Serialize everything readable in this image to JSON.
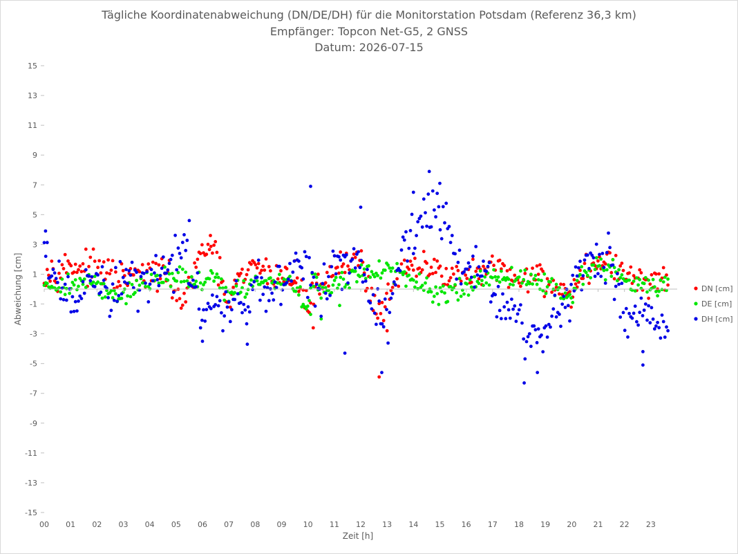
{
  "chart_data": {
    "type": "scatter",
    "title_lines": [
      "Tägliche Koordinatenabweichung (DN/DE/DH) für die Monitorstation Potsdam (Referenz 36,3 km)",
      "Empfänger: Topcon Net-G5, 2 GNSS",
      "Datum: 2026-07-15"
    ],
    "xlabel": "Zeit [h]",
    "ylabel": "Abweichung [cm]",
    "xlim": [
      0,
      24
    ],
    "ylim": [
      -15,
      15
    ],
    "x_tick_labels": [
      "00",
      "01",
      "02",
      "03",
      "04",
      "05",
      "06",
      "07",
      "08",
      "09",
      "10",
      "11",
      "12",
      "13",
      "14",
      "15",
      "16",
      "17",
      "18",
      "19",
      "20",
      "21",
      "22",
      "23"
    ],
    "y_ticks": [
      15,
      13,
      11,
      9,
      7,
      5,
      3,
      1,
      -1,
      -3,
      -5,
      -7,
      -9,
      -11,
      -13,
      -15
    ],
    "grid": false,
    "legend_position": "right",
    "series": [
      {
        "name": "DN [cm]",
        "color": "#ff0000",
        "anchors": [
          [
            0,
            1.3
          ],
          [
            0.5,
            1.3
          ],
          [
            1,
            1.6
          ],
          [
            1.5,
            1.5
          ],
          [
            2,
            1.3
          ],
          [
            2.5,
            1.0
          ],
          [
            3,
            0.6
          ],
          [
            3.5,
            0.9
          ],
          [
            4,
            0.9
          ],
          [
            4.5,
            1.2
          ],
          [
            5,
            -0.2
          ],
          [
            5.2,
            -1.0
          ],
          [
            5.6,
            0.5
          ],
          [
            6,
            2.6
          ],
          [
            6.2,
            3.0
          ],
          [
            6.5,
            2.0
          ],
          [
            7,
            -1.2
          ],
          [
            7.3,
            0.5
          ],
          [
            7.7,
            0.9
          ],
          [
            8,
            1.8
          ],
          [
            8.5,
            1.0
          ],
          [
            9,
            0.9
          ],
          [
            9.5,
            0.6
          ],
          [
            10,
            -1.0
          ],
          [
            10.5,
            0.5
          ],
          [
            11,
            1.3
          ],
          [
            11.5,
            2.1
          ],
          [
            12,
            2.0
          ],
          [
            12.4,
            -0.5
          ],
          [
            12.8,
            -1.6
          ],
          [
            13.2,
            0.5
          ],
          [
            13.6,
            1.0
          ],
          [
            14,
            1.3
          ],
          [
            14.5,
            1.4
          ],
          [
            15,
            1.3
          ],
          [
            15.5,
            1.0
          ],
          [
            16,
            0.8
          ],
          [
            16.5,
            1.0
          ],
          [
            17,
            1.3
          ],
          [
            17.5,
            1.0
          ],
          [
            18,
            0.5
          ],
          [
            18.5,
            1.2
          ],
          [
            19,
            0.5
          ],
          [
            19.5,
            0.2
          ],
          [
            20,
            -0.4
          ],
          [
            20.4,
            1.0
          ],
          [
            20.8,
            1.5
          ],
          [
            21.2,
            2.0
          ],
          [
            21.6,
            1.6
          ],
          [
            22,
            1.0
          ],
          [
            22.5,
            0.5
          ],
          [
            23,
            0.6
          ],
          [
            23.6,
            0.3
          ]
        ],
        "noise": 0.5,
        "outliers": [
          [
            12.7,
            -5.9
          ],
          [
            13.0,
            -2.8
          ],
          [
            10.2,
            -2.6
          ],
          [
            6.3,
            3.6
          ],
          [
            9.5,
            1.9
          ]
        ]
      },
      {
        "name": "DE [cm]",
        "color": "#00e600",
        "anchors": [
          [
            0,
            0.5
          ],
          [
            0.5,
            0.2
          ],
          [
            1,
            0.2
          ],
          [
            1.5,
            0.5
          ],
          [
            2,
            0.3
          ],
          [
            2.5,
            -0.4
          ],
          [
            3,
            -0.4
          ],
          [
            3.5,
            0.1
          ],
          [
            4,
            0.6
          ],
          [
            4.5,
            0.8
          ],
          [
            5,
            0.9
          ],
          [
            5.5,
            0.6
          ],
          [
            6,
            0.3
          ],
          [
            6.5,
            1.0
          ],
          [
            7,
            -0.3
          ],
          [
            7.5,
            0.0
          ],
          [
            8,
            0.2
          ],
          [
            8.5,
            0.6
          ],
          [
            9,
            0.6
          ],
          [
            9.5,
            0.5
          ],
          [
            10,
            -1.3
          ],
          [
            10.2,
            1.0
          ],
          [
            10.5,
            -0.2
          ],
          [
            11,
            0.2
          ],
          [
            11.5,
            0.7
          ],
          [
            12,
            1.0
          ],
          [
            12.5,
            1.2
          ],
          [
            13,
            1.5
          ],
          [
            13.5,
            0.8
          ],
          [
            14,
            0.5
          ],
          [
            14.5,
            -0.2
          ],
          [
            15,
            -0.5
          ],
          [
            15.5,
            0.0
          ],
          [
            16,
            0.3
          ],
          [
            16.5,
            0.6
          ],
          [
            17,
            0.8
          ],
          [
            17.5,
            0.6
          ],
          [
            18,
            0.7
          ],
          [
            18.5,
            0.8
          ],
          [
            19,
            0.2
          ],
          [
            19.5,
            0.0
          ],
          [
            20,
            -0.4
          ],
          [
            20.4,
            1.0
          ],
          [
            20.8,
            1.2
          ],
          [
            21.2,
            1.5
          ],
          [
            21.6,
            1.4
          ],
          [
            22,
            0.5
          ],
          [
            22.5,
            0.3
          ],
          [
            23,
            0.2
          ],
          [
            23.6,
            0.2
          ]
        ],
        "noise": 0.35,
        "outliers": [
          [
            10.5,
            -2.0
          ],
          [
            10.1,
            -1.7
          ],
          [
            11.2,
            -1.1
          ]
        ]
      },
      {
        "name": "DH [cm]",
        "color": "#0000e6",
        "anchors": [
          [
            0,
            2.8
          ],
          [
            0.2,
            1.0
          ],
          [
            0.5,
            0.6
          ],
          [
            0.8,
            -0.6
          ],
          [
            1,
            -0.8
          ],
          [
            1.5,
            0.0
          ],
          [
            2,
            0.3
          ],
          [
            2.5,
            -0.8
          ],
          [
            3,
            1.0
          ],
          [
            3.5,
            0.0
          ],
          [
            4,
            0.6
          ],
          [
            4.5,
            1.2
          ],
          [
            5,
            2.0
          ],
          [
            5.3,
            3.5
          ],
          [
            5.6,
            1.0
          ],
          [
            6,
            -1.5
          ],
          [
            6.5,
            -1.5
          ],
          [
            7,
            -1.2
          ],
          [
            7.5,
            -1.0
          ],
          [
            8,
            0.8
          ],
          [
            8.5,
            -0.5
          ],
          [
            9,
            0.8
          ],
          [
            9.5,
            1.5
          ],
          [
            10,
            1.3
          ],
          [
            10.3,
            -0.5
          ],
          [
            10.8,
            0.2
          ],
          [
            11,
            2.0
          ],
          [
            11.5,
            1.2
          ],
          [
            12,
            2.0
          ],
          [
            12.3,
            0.0
          ],
          [
            12.6,
            -1.0
          ],
          [
            13,
            -2.0
          ],
          [
            13.3,
            0.5
          ],
          [
            13.6,
            2.5
          ],
          [
            14,
            3.5
          ],
          [
            14.3,
            4.5
          ],
          [
            14.6,
            5.5
          ],
          [
            15,
            5.0
          ],
          [
            15.3,
            4.0
          ],
          [
            15.6,
            1.5
          ],
          [
            16,
            1.0
          ],
          [
            16.5,
            2.0
          ],
          [
            17,
            -0.5
          ],
          [
            17.5,
            -1.0
          ],
          [
            18,
            -2.0
          ],
          [
            18.3,
            -4.0
          ],
          [
            18.6,
            -3.0
          ],
          [
            19,
            -3.0
          ],
          [
            19.5,
            -1.5
          ],
          [
            20,
            0.0
          ],
          [
            20.3,
            1.5
          ],
          [
            20.6,
            2.5
          ],
          [
            21,
            2.0
          ],
          [
            21.4,
            2.5
          ],
          [
            21.7,
            0.0
          ],
          [
            22,
            -2.0
          ],
          [
            22.5,
            -2.0
          ],
          [
            23,
            -1.5
          ],
          [
            23.6,
            -1.8
          ]
        ],
        "noise": 0.8,
        "outliers": [
          [
            10.1,
            6.9
          ],
          [
            12.0,
            5.5
          ],
          [
            12.8,
            -5.6
          ],
          [
            11.4,
            -4.3
          ],
          [
            6.0,
            -3.5
          ],
          [
            7.7,
            -3.7
          ],
          [
            18.2,
            -6.3
          ],
          [
            18.7,
            -5.6
          ],
          [
            22.7,
            -5.1
          ],
          [
            14.0,
            6.5
          ],
          [
            14.6,
            7.9
          ],
          [
            15.0,
            7.1
          ],
          [
            5.5,
            4.6
          ],
          [
            0.05,
            3.9
          ],
          [
            22.7,
            -4.2
          ]
        ]
      }
    ]
  }
}
